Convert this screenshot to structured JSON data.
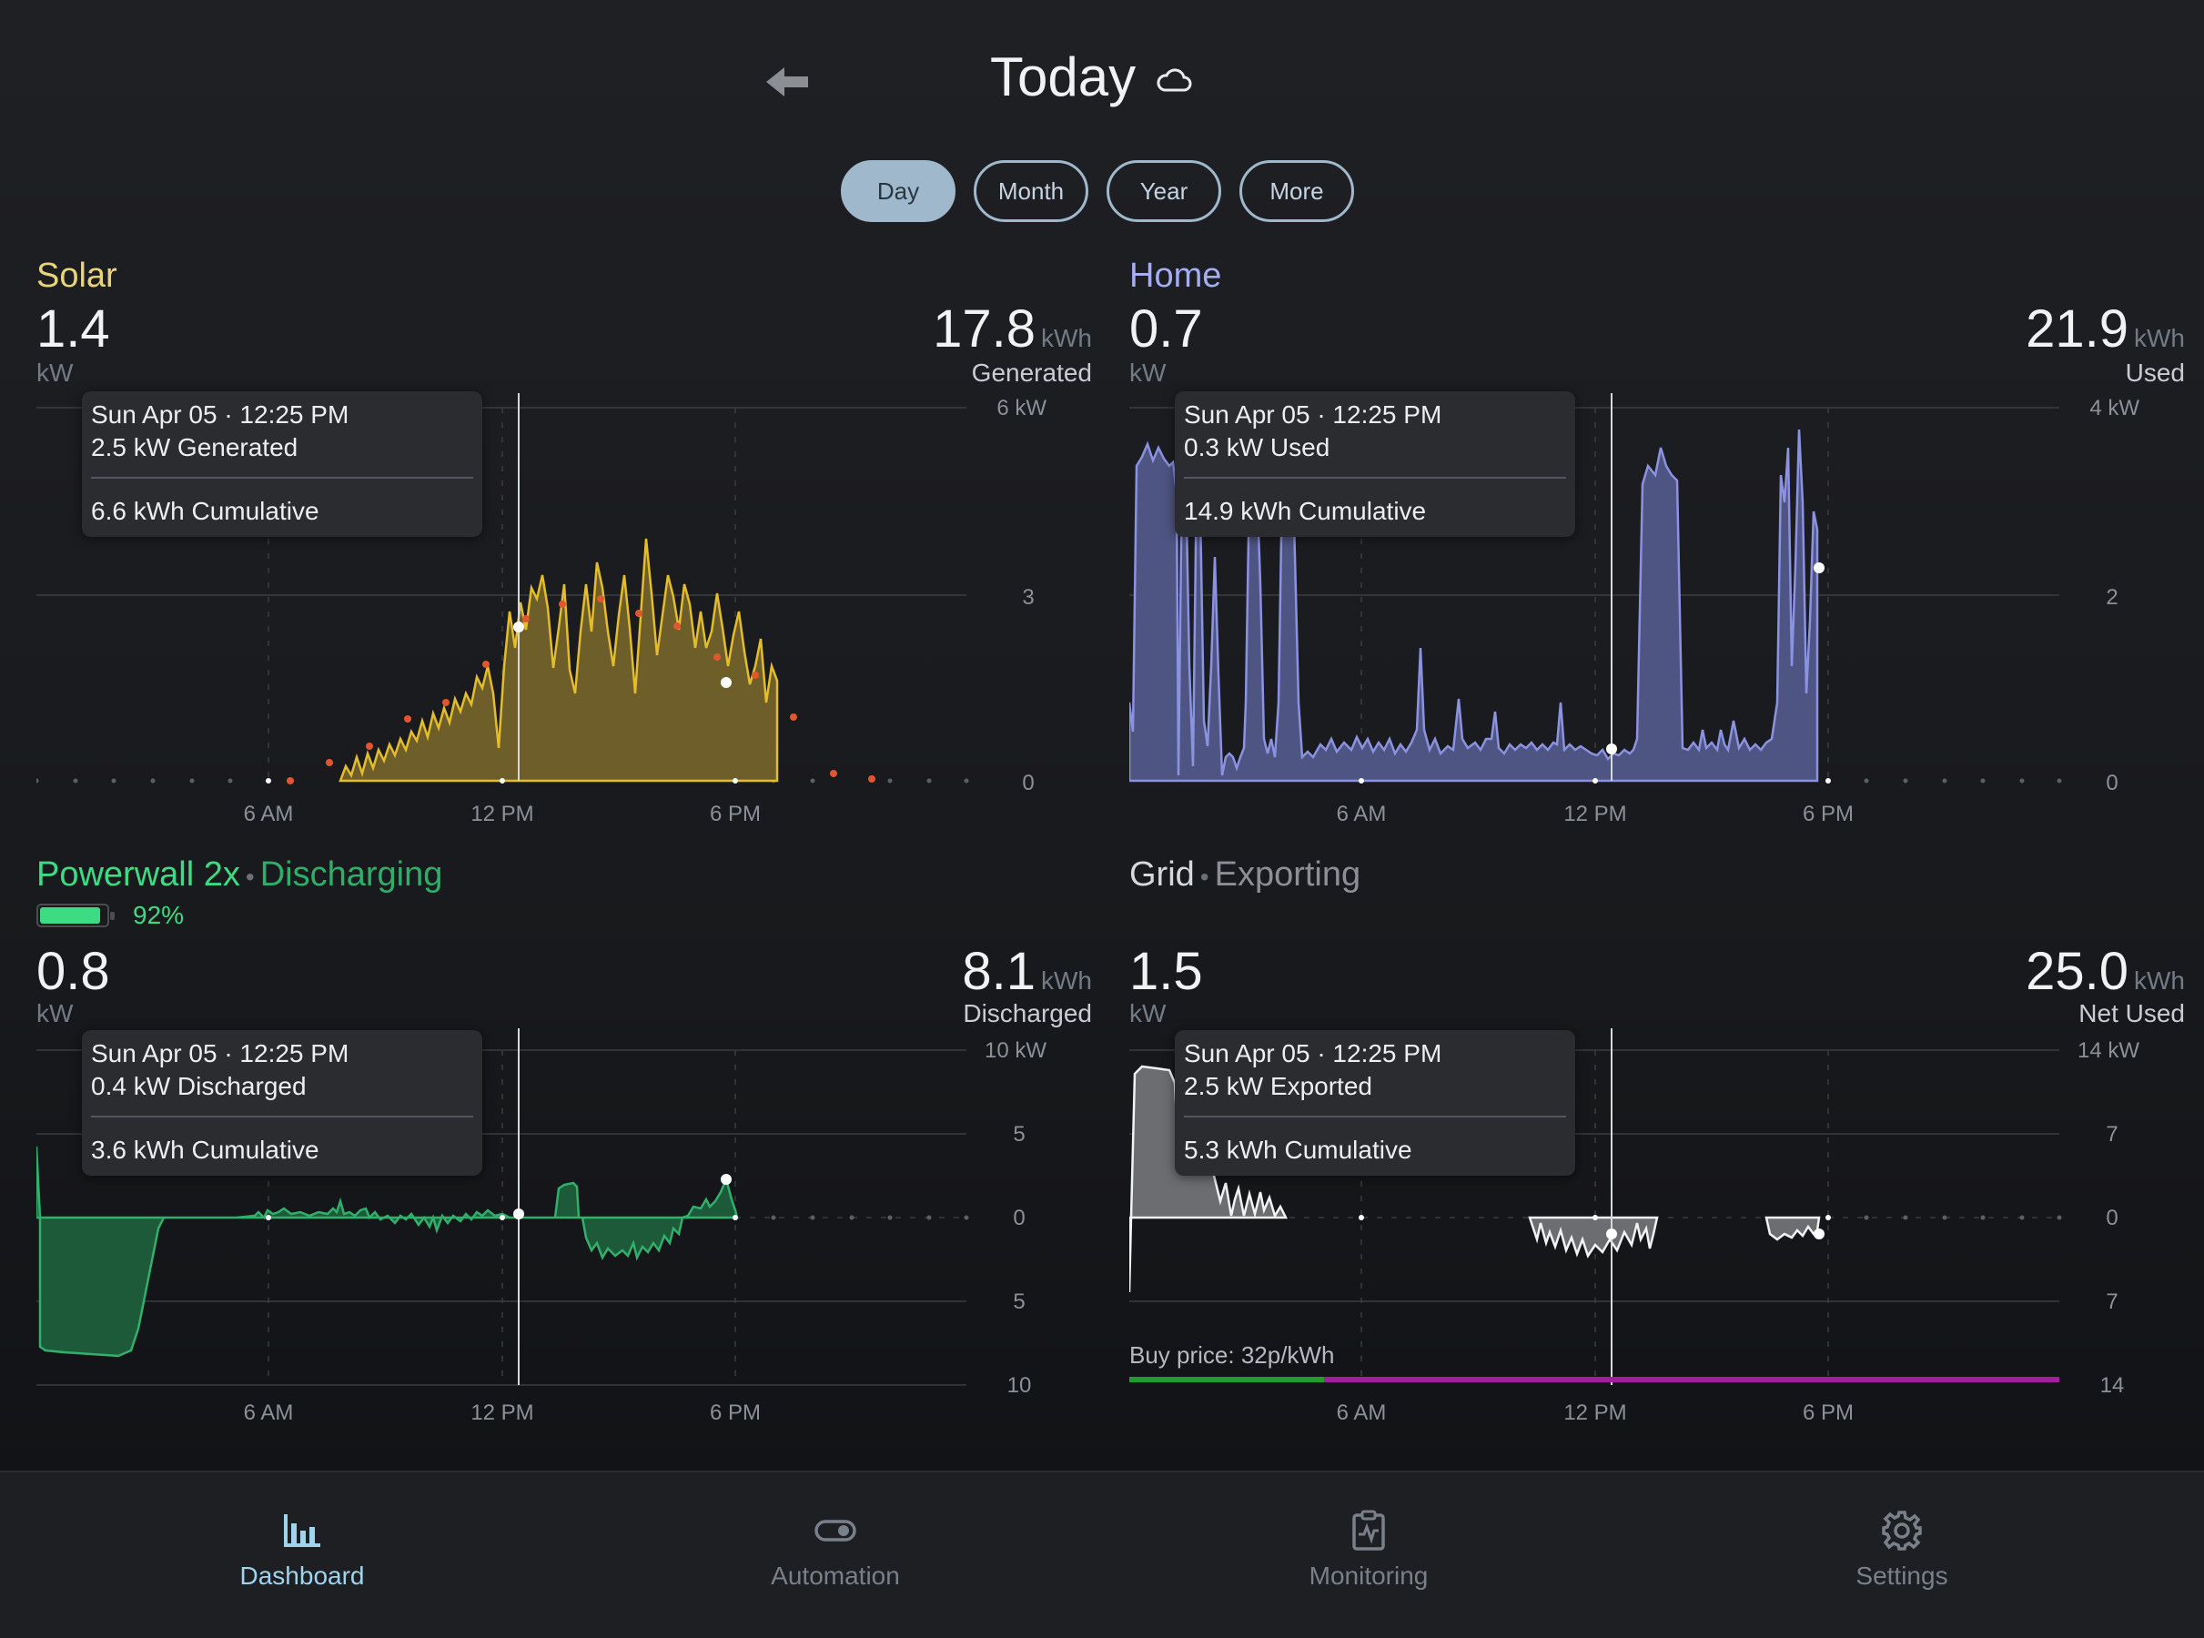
{
  "header": {
    "title": "Today",
    "back_icon": "back-arrow-icon",
    "weather_icon": "cloud-icon"
  },
  "tabs": [
    {
      "label": "Day",
      "active": true
    },
    {
      "label": "Month",
      "active": false
    },
    {
      "label": "Year",
      "active": false
    },
    {
      "label": "More",
      "active": false
    }
  ],
  "panels": {
    "solar": {
      "title": "Solar",
      "color": "#e8d57a",
      "value": "1.4",
      "unit": "kW",
      "total": "17.8",
      "total_unit": "kWh",
      "total_label": "Generated",
      "tooltip": {
        "time": "Sun Apr 05 · 12:25 PM",
        "value_line": "2.5 kW Generated",
        "cumulative": "6.6 kWh Cumulative"
      },
      "y_ticks": [
        "6 kW",
        "3",
        "0"
      ],
      "x_ticks": [
        "6 AM",
        "12 PM",
        "6 PM"
      ]
    },
    "home": {
      "title": "Home",
      "color": "#a4aef0",
      "value": "0.7",
      "unit": "kW",
      "total": "21.9",
      "total_unit": "kWh",
      "total_label": "Used",
      "tooltip": {
        "time": "Sun Apr 05 · 12:25 PM",
        "value_line": "0.3 kW Used",
        "cumulative": "14.9 kWh Cumulative"
      },
      "y_ticks": [
        "4 kW",
        "2",
        "0"
      ],
      "x_ticks": [
        "6 AM",
        "12 PM",
        "6 PM"
      ]
    },
    "powerwall": {
      "title": "Powerwall 2x",
      "status": "Discharging",
      "color": "#3ddc84",
      "battery_percent": 92,
      "battery_label": "92%",
      "value": "0.8",
      "unit": "kW",
      "total": "8.1",
      "total_unit": "kWh",
      "total_label": "Discharged",
      "tooltip": {
        "time": "Sun Apr 05 · 12:25 PM",
        "value_line": "0.4 kW Discharged",
        "cumulative": "3.6 kWh Cumulative"
      },
      "y_ticks": [
        "10 kW",
        "5",
        "0",
        "5",
        "10"
      ],
      "x_ticks": [
        "6 AM",
        "12 PM",
        "6 PM"
      ]
    },
    "grid": {
      "title": "Grid",
      "status": "Exporting",
      "color": "#d6d8db",
      "value": "1.5",
      "unit": "kW",
      "total": "25.0",
      "total_unit": "kWh",
      "total_label": "Net Used",
      "tooltip": {
        "time": "Sun Apr 05 · 12:25 PM",
        "value_line": "2.5 kW Exported",
        "cumulative": "5.3 kWh Cumulative"
      },
      "buy_price": "Buy price: 32p/kWh",
      "y_ticks": [
        "14 kW",
        "7",
        "0",
        "7",
        "14"
      ],
      "x_ticks": [
        "6 AM",
        "12 PM",
        "6 PM"
      ]
    }
  },
  "nav": [
    {
      "label": "Dashboard",
      "icon": "bar-chart-icon",
      "active": true
    },
    {
      "label": "Automation",
      "icon": "toggle-icon",
      "active": false
    },
    {
      "label": "Monitoring",
      "icon": "clipboard-pulse-icon",
      "active": false
    },
    {
      "label": "Settings",
      "icon": "gear-icon",
      "active": false
    }
  ]
}
